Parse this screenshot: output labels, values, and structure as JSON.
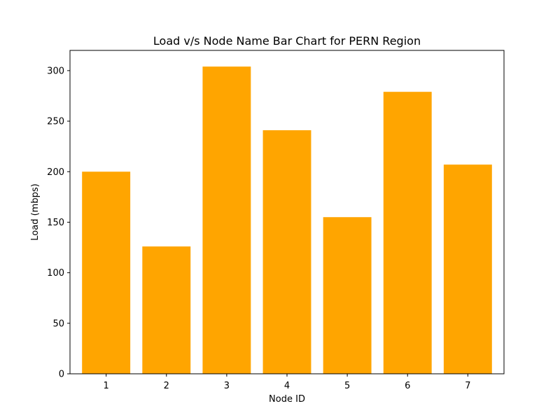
{
  "chart_data": {
    "type": "bar",
    "title": "Load v/s Node Name Bar Chart for PERN Region",
    "xlabel": "Node ID",
    "ylabel": "Load (mbps)",
    "categories": [
      "1",
      "2",
      "3",
      "4",
      "5",
      "6",
      "7"
    ],
    "values": [
      200,
      126,
      304,
      241,
      155,
      279,
      207
    ],
    "ylim": [
      0,
      320
    ],
    "yticks": [
      0,
      50,
      100,
      150,
      200,
      250,
      300
    ],
    "bar_color": "#ffa500",
    "grid": false,
    "legend": "none"
  }
}
